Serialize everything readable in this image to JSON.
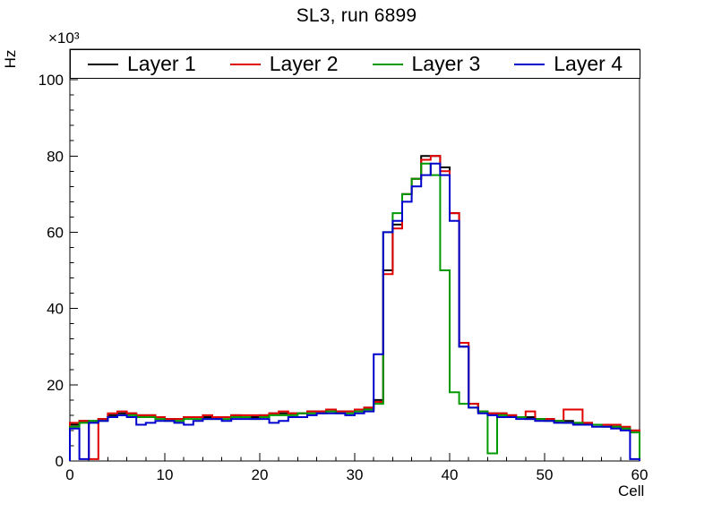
{
  "title": "SL3, run 6899",
  "axes": {
    "y_label": "Hz",
    "x_label": "Cell",
    "y_multiplier": "×10³",
    "y_ticks": [
      0,
      20,
      40,
      60,
      80,
      100
    ],
    "x_ticks": [
      0,
      10,
      20,
      30,
      40,
      50,
      60
    ]
  },
  "legend": {
    "items": [
      {
        "label": "Layer 1",
        "color": "#000000"
      },
      {
        "label": "Layer 2",
        "color": "#e00000"
      },
      {
        "label": "Layer 3",
        "color": "#009900"
      },
      {
        "label": "Layer 4",
        "color": "#0000cc"
      }
    ]
  },
  "chart_data": {
    "type": "line",
    "style": "step-histogram",
    "title": "SL3, run 6899",
    "xlabel": "Cell",
    "ylabel": "Hz",
    "y_unit": "×10³ Hz",
    "xlim": [
      0,
      60
    ],
    "ylim": [
      0,
      108
    ],
    "x_bin_width": 1,
    "grid": false,
    "legend_position": "top, full plot width",
    "series": [
      {
        "name": "Layer 1",
        "color": "#000000",
        "values": [
          9.5,
          10.5,
          10.5,
          11,
          12,
          12.5,
          12.5,
          12,
          12,
          11.5,
          11,
          11,
          11.5,
          11.5,
          11.5,
          11.5,
          11.5,
          12,
          11.5,
          11.5,
          12,
          12.5,
          12.5,
          12.5,
          12.5,
          13,
          13,
          13.5,
          13,
          13,
          13.5,
          14,
          16,
          50,
          62,
          70,
          74,
          80,
          80,
          77,
          65,
          30,
          15,
          13,
          12.5,
          12.5,
          12,
          11.5,
          11.5,
          11,
          11,
          10.5,
          10.5,
          10,
          10,
          9.5,
          9.5,
          9,
          8.5,
          8
        ]
      },
      {
        "name": "Layer 2",
        "color": "#e00000",
        "values": [
          10,
          10.5,
          0.5,
          11,
          12.5,
          13,
          12.5,
          12,
          12,
          11.5,
          11,
          11,
          11.5,
          11.5,
          12,
          11.5,
          11.5,
          12,
          12,
          12,
          12,
          12.5,
          13,
          12.5,
          12.5,
          13,
          13,
          13.5,
          13,
          13,
          13.5,
          14,
          15.5,
          49,
          61,
          70,
          74,
          79,
          80,
          76,
          65,
          31,
          15,
          13,
          12.5,
          12.5,
          12,
          11.5,
          13,
          11,
          11,
          10.5,
          13.5,
          13.5,
          10,
          9.5,
          9.5,
          9.5,
          9,
          8
        ]
      },
      {
        "name": "Layer 3",
        "color": "#009900",
        "values": [
          9,
          10,
          10.5,
          10.5,
          11.5,
          12,
          12,
          11.5,
          11.5,
          11,
          10.5,
          10.5,
          11,
          11,
          11,
          11,
          11,
          11.5,
          11.5,
          11,
          11.5,
          12,
          12,
          12,
          12.5,
          12.5,
          12.5,
          13,
          12.5,
          12.5,
          13,
          13.5,
          15,
          60,
          65,
          70,
          74,
          78,
          75,
          50,
          18,
          15,
          14,
          13,
          2,
          12,
          11.5,
          11.5,
          11,
          11,
          10.5,
          10.5,
          10,
          10,
          9.5,
          9.5,
          9,
          9,
          8.5,
          7.5
        ]
      },
      {
        "name": "Layer 4",
        "color": "#0000cc",
        "values": [
          8.5,
          0.5,
          10,
          10.5,
          11.5,
          12,
          11.5,
          9.5,
          10,
          10.5,
          10.5,
          10,
          9.5,
          10.5,
          11,
          11,
          10.5,
          11,
          11,
          11,
          11,
          10,
          10.5,
          11.5,
          11.5,
          12,
          12.5,
          12.5,
          12.5,
          12,
          12.5,
          13,
          28,
          60,
          63,
          68,
          72,
          75,
          78,
          75,
          63,
          30,
          14,
          12.5,
          12,
          11.5,
          11.5,
          11,
          11,
          10.5,
          10.5,
          10,
          10,
          9.5,
          9.5,
          9,
          9,
          8.5,
          8,
          0.5
        ]
      }
    ]
  }
}
